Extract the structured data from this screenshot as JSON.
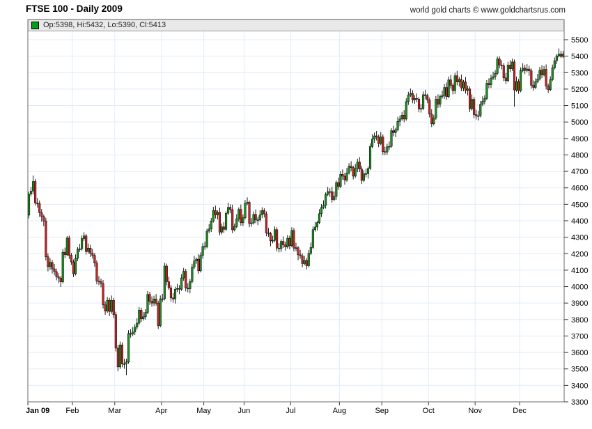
{
  "header": {
    "title": "FTSE 100 - Daily 2009",
    "copyright": "world gold charts © www.goldchartsrus.com"
  },
  "legend": {
    "swatch_color": "#00a019",
    "text": "Op:5398, Hi:5432, Lo:5390, Cl:5413"
  },
  "chart_data": {
    "type": "candlestick",
    "title": "FTSE 100 - Daily 2009",
    "ylim": [
      3300,
      5500
    ],
    "y_tick_step": 100,
    "grid": true,
    "axis_side": "right",
    "x_tick_labels": [
      "Jan 09",
      "Feb",
      "Mar",
      "Apr",
      "May",
      "Jun",
      "Jul",
      "Aug",
      "Sep",
      "Oct",
      "Nov",
      "Dec"
    ],
    "month_day_counts": [
      21,
      20,
      22,
      20,
      19,
      22,
      23,
      20,
      22,
      22,
      21,
      21
    ],
    "last_candle": {
      "open": 5398,
      "high": 5432,
      "low": 5390,
      "close": 5413
    },
    "colors": {
      "up": "#1b8f1f",
      "down": "#cc2222",
      "wick": "#000000",
      "grid": "#e2ecf6",
      "axis": "#6a6a6a",
      "tick": "#333333",
      "label": "#000000"
    },
    "ohlc": [
      [
        4434,
        4577,
        4414,
        4562
      ],
      [
        4562,
        4605,
        4550,
        4580
      ],
      [
        4580,
        4675,
        4560,
        4639
      ],
      [
        4639,
        4654,
        4493,
        4508
      ],
      [
        4508,
        4538,
        4480,
        4505
      ],
      [
        4505,
        4523,
        4424,
        4449
      ],
      [
        4449,
        4471,
        4394,
        4426
      ],
      [
        4426,
        4438,
        4367,
        4399
      ],
      [
        4399,
        4419,
        4159,
        4181
      ],
      [
        4181,
        4201,
        4093,
        4121
      ],
      [
        4121,
        4172,
        4101,
        4147
      ],
      [
        4147,
        4162,
        4080,
        4108
      ],
      [
        4108,
        4138,
        4069,
        4091
      ],
      [
        4091,
        4109,
        4038,
        4060
      ],
      [
        4060,
        4082,
        4022,
        4052
      ],
      [
        4052,
        4064,
        3998,
        4029
      ],
      [
        4029,
        4229,
        4019,
        4209
      ],
      [
        4209,
        4237,
        4172,
        4194
      ],
      [
        4194,
        4307,
        4184,
        4295
      ],
      [
        4295,
        4310,
        4168,
        4190
      ],
      [
        4190,
        4205,
        4132,
        4150
      ],
      [
        4150,
        4165,
        4058,
        4078
      ],
      [
        4078,
        4196,
        4068,
        4171
      ],
      [
        4171,
        4240,
        4155,
        4228
      ],
      [
        4228,
        4259,
        4210,
        4229
      ],
      [
        4229,
        4310,
        4219,
        4292
      ],
      [
        4292,
        4330,
        4278,
        4308
      ],
      [
        4308,
        4320,
        4195,
        4213
      ],
      [
        4213,
        4262,
        4200,
        4234
      ],
      [
        4234,
        4254,
        4180,
        4202
      ],
      [
        4202,
        4230,
        4170,
        4190
      ],
      [
        4190,
        4205,
        4121,
        4143
      ],
      [
        4143,
        4160,
        4014,
        4034
      ],
      [
        4034,
        4064,
        4009,
        4031
      ],
      [
        4031,
        4049,
        3996,
        4018
      ],
      [
        4018,
        4040,
        3867,
        3889
      ],
      [
        3889,
        3911,
        3829,
        3851
      ],
      [
        3851,
        3937,
        3841,
        3917
      ],
      [
        3917,
        3932,
        3821,
        3849
      ],
      [
        3849,
        3946,
        3835,
        3916
      ],
      [
        3916,
        3931,
        3808,
        3830
      ],
      [
        3830,
        3848,
        3606,
        3626
      ],
      [
        3626,
        3646,
        3485,
        3512
      ],
      [
        3512,
        3666,
        3500,
        3646
      ],
      [
        3646,
        3661,
        3510,
        3530
      ],
      [
        3530,
        3561,
        3501,
        3531
      ],
      [
        3531,
        3562,
        3462,
        3542
      ],
      [
        3542,
        3735,
        3532,
        3715
      ],
      [
        3715,
        3742,
        3690,
        3712
      ],
      [
        3712,
        3754,
        3700,
        3724
      ],
      [
        3724,
        3772,
        3706,
        3754
      ],
      [
        3754,
        3808,
        3740,
        3778
      ],
      [
        3778,
        3877,
        3768,
        3857
      ],
      [
        3857,
        3872,
        3785,
        3805
      ],
      [
        3805,
        3845,
        3793,
        3817
      ],
      [
        3817,
        3863,
        3799,
        3843
      ],
      [
        3843,
        3973,
        3833,
        3953
      ],
      [
        3953,
        3968,
        3889,
        3911
      ],
      [
        3911,
        3941,
        3878,
        3900
      ],
      [
        3900,
        3945,
        3882,
        3925
      ],
      [
        3925,
        3955,
        3885,
        3899
      ],
      [
        3899,
        3914,
        3743,
        3763
      ],
      [
        3763,
        3946,
        3753,
        3926
      ],
      [
        3926,
        3956,
        3906,
        3926
      ],
      [
        3926,
        4145,
        3916,
        4125
      ],
      [
        4125,
        4140,
        4008,
        4030
      ],
      [
        4030,
        4060,
        3981,
        3993
      ],
      [
        3993,
        4011,
        3909,
        3931
      ],
      [
        3931,
        3961,
        3903,
        3925
      ],
      [
        3925,
        3999,
        3897,
        3984
      ],
      [
        3984,
        4017,
        3967,
        3989
      ],
      [
        3989,
        4009,
        3954,
        3984
      ],
      [
        3984,
        4075,
        3974,
        4053
      ],
      [
        4053,
        4113,
        4035,
        4093
      ],
      [
        4093,
        4108,
        3971,
        3991
      ],
      [
        3991,
        4021,
        3965,
        3987
      ],
      [
        3987,
        4046,
        3959,
        4031
      ],
      [
        4031,
        4139,
        4021,
        4119
      ],
      [
        4119,
        4186,
        4107,
        4156
      ],
      [
        4156,
        4177,
        4139,
        4167
      ],
      [
        4167,
        4197,
        4078,
        4096
      ],
      [
        4096,
        4208,
        4086,
        4190
      ],
      [
        4190,
        4264,
        4170,
        4244
      ],
      [
        4244,
        4274,
        4223,
        4243
      ],
      [
        4243,
        4352,
        4233,
        4337
      ],
      [
        4337,
        4380,
        4325,
        4350
      ],
      [
        4350,
        4417,
        4332,
        4399
      ],
      [
        4399,
        4485,
        4389,
        4462
      ],
      [
        4462,
        4492,
        4414,
        4436
      ],
      [
        4436,
        4463,
        4408,
        4451
      ],
      [
        4451,
        4479,
        4311,
        4331
      ],
      [
        4331,
        4383,
        4317,
        4363
      ],
      [
        4363,
        4391,
        4326,
        4348
      ],
      [
        4348,
        4458,
        4338,
        4446
      ],
      [
        4446,
        4510,
        4436,
        4482
      ],
      [
        4482,
        4500,
        4446,
        4468
      ],
      [
        4468,
        4498,
        4325,
        4345
      ],
      [
        4345,
        4383,
        4335,
        4365
      ],
      [
        4365,
        4440,
        4355,
        4412
      ],
      [
        4412,
        4481,
        4394,
        4469
      ],
      [
        4469,
        4499,
        4370,
        4388
      ],
      [
        4388,
        4438,
        4368,
        4418
      ],
      [
        4418,
        4526,
        4408,
        4506
      ],
      [
        4506,
        4542,
        4494,
        4512
      ],
      [
        4512,
        4522,
        4361,
        4383
      ],
      [
        4383,
        4417,
        4365,
        4387
      ],
      [
        4387,
        4457,
        4377,
        4439
      ],
      [
        4439,
        4469,
        4385,
        4405
      ],
      [
        4405,
        4425,
        4373,
        4405
      ],
      [
        4405,
        4464,
        4395,
        4436
      ],
      [
        4436,
        4482,
        4416,
        4462
      ],
      [
        4462,
        4476,
        4420,
        4442
      ],
      [
        4442,
        4457,
        4306,
        4326
      ],
      [
        4326,
        4356,
        4303,
        4323
      ],
      [
        4323,
        4333,
        4246,
        4278
      ],
      [
        4278,
        4309,
        4263,
        4281
      ],
      [
        4281,
        4366,
        4271,
        4346
      ],
      [
        4346,
        4361,
        4214,
        4234
      ],
      [
        4234,
        4264,
        4208,
        4230
      ],
      [
        4230,
        4287,
        4210,
        4275
      ],
      [
        4275,
        4305,
        4235,
        4253
      ],
      [
        4253,
        4273,
        4219,
        4241
      ],
      [
        4241,
        4314,
        4231,
        4294
      ],
      [
        4294,
        4309,
        4227,
        4249
      ],
      [
        4249,
        4361,
        4239,
        4341
      ],
      [
        4341,
        4356,
        4214,
        4234
      ],
      [
        4234,
        4266,
        4216,
        4236
      ],
      [
        4236,
        4246,
        4161,
        4193
      ],
      [
        4193,
        4223,
        4169,
        4187
      ],
      [
        4187,
        4202,
        4118,
        4140
      ],
      [
        4140,
        4187,
        4130,
        4159
      ],
      [
        4159,
        4174,
        4105,
        4127
      ],
      [
        4127,
        4222,
        4117,
        4202
      ],
      [
        4202,
        4268,
        4192,
        4238
      ],
      [
        4238,
        4366,
        4228,
        4346
      ],
      [
        4346,
        4392,
        4334,
        4362
      ],
      [
        4362,
        4399,
        4341,
        4389
      ],
      [
        4389,
        4471,
        4379,
        4443
      ],
      [
        4443,
        4501,
        4423,
        4481
      ],
      [
        4481,
        4524,
        4471,
        4494
      ],
      [
        4494,
        4572,
        4474,
        4560
      ],
      [
        4560,
        4605,
        4550,
        4577
      ],
      [
        4577,
        4597,
        4545,
        4577
      ],
      [
        4577,
        4607,
        4511,
        4529
      ],
      [
        4529,
        4578,
        4519,
        4548
      ],
      [
        4548,
        4644,
        4528,
        4632
      ],
      [
        4632,
        4662,
        4588,
        4608
      ],
      [
        4608,
        4702,
        4598,
        4682
      ],
      [
        4682,
        4712,
        4649,
        4671
      ],
      [
        4671,
        4691,
        4619,
        4647
      ],
      [
        4647,
        4721,
        4637,
        4691
      ],
      [
        4691,
        4750,
        4681,
        4732
      ],
      [
        4732,
        4762,
        4701,
        4723
      ],
      [
        4723,
        4735,
        4651,
        4671
      ],
      [
        4671,
        4745,
        4661,
        4717
      ],
      [
        4717,
        4777,
        4695,
        4757
      ],
      [
        4757,
        4787,
        4696,
        4714
      ],
      [
        4714,
        4734,
        4623,
        4645
      ],
      [
        4645,
        4706,
        4635,
        4686
      ],
      [
        4686,
        4716,
        4664,
        4686
      ],
      [
        4686,
        4730,
        4656,
        4718
      ],
      [
        4718,
        4871,
        4708,
        4851
      ],
      [
        4851,
        4926,
        4841,
        4896
      ],
      [
        4896,
        4936,
        4874,
        4916
      ],
      [
        4916,
        4946,
        4888,
        4908
      ],
      [
        4908,
        4923,
        4847,
        4869
      ],
      [
        4869,
        4939,
        4859,
        4909
      ],
      [
        4909,
        4924,
        4800,
        4820
      ],
      [
        4820,
        4850,
        4798,
        4818
      ],
      [
        4818,
        4868,
        4800,
        4850
      ],
      [
        4850,
        4882,
        4830,
        4852
      ],
      [
        4852,
        4962,
        4842,
        4947
      ],
      [
        4947,
        4977,
        4914,
        4936
      ],
      [
        4936,
        4965,
        4908,
        4953
      ],
      [
        4953,
        5032,
        4943,
        5004
      ],
      [
        5004,
        5038,
        4974,
        5018
      ],
      [
        5018,
        5062,
        5008,
        5042
      ],
      [
        5042,
        5072,
        4998,
        5018
      ],
      [
        5018,
        5144,
        5008,
        5124
      ],
      [
        5124,
        5184,
        5104,
        5164
      ],
      [
        5164,
        5203,
        5152,
        5173
      ],
      [
        5173,
        5193,
        5114,
        5134
      ],
      [
        5134,
        5164,
        5111,
        5143
      ],
      [
        5143,
        5173,
        5119,
        5139
      ],
      [
        5139,
        5151,
        5059,
        5079
      ],
      [
        5079,
        5109,
        5057,
        5082
      ],
      [
        5082,
        5186,
        5072,
        5166
      ],
      [
        5166,
        5196,
        5138,
        5160
      ],
      [
        5160,
        5172,
        5114,
        5134
      ],
      [
        5134,
        5149,
        5028,
        5048
      ],
      [
        5048,
        5078,
        4969,
        4989
      ],
      [
        4989,
        5044,
        4979,
        5024
      ],
      [
        5024,
        5158,
        5014,
        5138
      ],
      [
        5138,
        5168,
        5086,
        5108
      ],
      [
        5108,
        5167,
        5088,
        5155
      ],
      [
        5155,
        5191,
        5143,
        5161
      ],
      [
        5161,
        5230,
        5141,
        5210
      ],
      [
        5210,
        5240,
        5134,
        5154
      ],
      [
        5154,
        5276,
        5144,
        5256
      ],
      [
        5256,
        5286,
        5203,
        5223
      ],
      [
        5223,
        5235,
        5168,
        5190
      ],
      [
        5190,
        5299,
        5170,
        5281
      ],
      [
        5281,
        5311,
        5223,
        5243
      ],
      [
        5243,
        5273,
        5215,
        5258
      ],
      [
        5258,
        5288,
        5187,
        5207
      ],
      [
        5207,
        5255,
        5187,
        5243
      ],
      [
        5243,
        5273,
        5172,
        5192
      ],
      [
        5192,
        5222,
        5161,
        5201
      ],
      [
        5201,
        5216,
        5060,
        5080
      ],
      [
        5080,
        5168,
        5070,
        5138
      ],
      [
        5138,
        5153,
        5023,
        5045
      ],
      [
        5045,
        5075,
        5015,
        5037
      ],
      [
        5037,
        5068,
        5009,
        5038
      ],
      [
        5038,
        5128,
        5028,
        5108
      ],
      [
        5108,
        5156,
        5096,
        5126
      ],
      [
        5126,
        5163,
        5106,
        5143
      ],
      [
        5143,
        5255,
        5133,
        5235
      ],
      [
        5235,
        5265,
        5205,
        5227
      ],
      [
        5227,
        5287,
        5207,
        5267
      ],
      [
        5267,
        5306,
        5255,
        5276
      ],
      [
        5276,
        5316,
        5256,
        5296
      ],
      [
        5296,
        5397,
        5286,
        5383
      ],
      [
        5383,
        5398,
        5326,
        5346
      ],
      [
        5346,
        5376,
        5320,
        5342
      ],
      [
        5342,
        5357,
        5248,
        5268
      ],
      [
        5268,
        5298,
        5231,
        5251
      ],
      [
        5251,
        5366,
        5241,
        5346
      ],
      [
        5346,
        5376,
        5304,
        5324
      ],
      [
        5324,
        5385,
        5310,
        5365
      ],
      [
        5365,
        5380,
        5093,
        5194
      ],
      [
        5194,
        5276,
        5184,
        5246
      ],
      [
        5246,
        5261,
        5171,
        5191
      ],
      [
        5191,
        5332,
        5181,
        5312
      ],
      [
        5312,
        5357,
        5302,
        5327
      ],
      [
        5327,
        5347,
        5291,
        5313
      ],
      [
        5313,
        5352,
        5303,
        5322
      ],
      [
        5322,
        5342,
        5281,
        5311
      ],
      [
        5311,
        5326,
        5203,
        5223
      ],
      [
        5223,
        5253,
        5190,
        5210
      ],
      [
        5210,
        5265,
        5200,
        5245
      ],
      [
        5245,
        5292,
        5235,
        5262
      ],
      [
        5262,
        5335,
        5252,
        5315
      ],
      [
        5315,
        5345,
        5266,
        5286
      ],
      [
        5286,
        5340,
        5276,
        5320
      ],
      [
        5320,
        5350,
        5198,
        5218
      ],
      [
        5218,
        5233,
        5177,
        5197
      ],
      [
        5197,
        5278,
        5187,
        5258
      ],
      [
        5258,
        5349,
        5248,
        5329
      ],
      [
        5329,
        5392,
        5319,
        5372
      ],
      [
        5372,
        5412,
        5352,
        5402
      ],
      [
        5402,
        5447,
        5392,
        5413
      ],
      [
        5413,
        5433,
        5388,
        5398
      ],
      [
        5398,
        5432,
        5390,
        5413
      ]
    ]
  }
}
